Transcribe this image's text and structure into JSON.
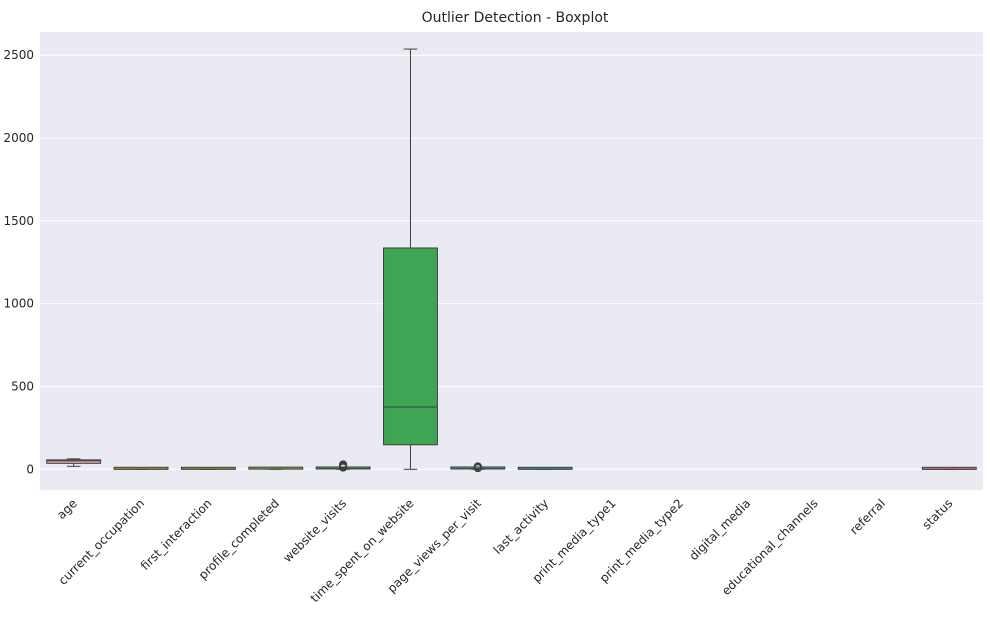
{
  "chart_data": {
    "type": "boxplot",
    "title": "Outlier Detection - Boxplot",
    "xlabel": "",
    "ylabel": "",
    "ylim": [
      -125,
      2640
    ],
    "yticks": [
      0,
      500,
      1000,
      1500,
      2000,
      2500
    ],
    "grid": true,
    "categories": [
      "age",
      "current_occupation",
      "first_interaction",
      "profile_completed",
      "website_visits",
      "time_spent_on_website",
      "page_views_per_visit",
      "last_activity",
      "print_media_type1",
      "print_media_type2",
      "digital_media",
      "educational_channels",
      "referral",
      "status"
    ],
    "boxes": [
      {
        "name": "age",
        "whisker_low": 18,
        "q1": 36,
        "median": 51,
        "q3": 57,
        "whisker_high": 63,
        "outliers": [],
        "color": "#e6a6a9"
      },
      {
        "name": "current_occupation",
        "whisker_low": 0,
        "q1": 0,
        "median": 1,
        "q3": 2,
        "whisker_high": 2,
        "outliers": [],
        "color": "#d9a03f"
      },
      {
        "name": "first_interaction",
        "whisker_low": 0,
        "q1": 0,
        "median": 1,
        "q3": 1,
        "whisker_high": 1,
        "outliers": [],
        "color": "#b5a33a"
      },
      {
        "name": "profile_completed",
        "whisker_low": 0,
        "q1": 1,
        "median": 2,
        "q3": 2,
        "whisker_high": 2,
        "outliers": [],
        "color": "#8fae3e"
      },
      {
        "name": "website_visits",
        "whisker_low": 0,
        "q1": 2,
        "median": 3,
        "q3": 5,
        "whisker_high": 9,
        "outliers": [
          10,
          12,
          14,
          16,
          18,
          20,
          22,
          24,
          26,
          28,
          30
        ],
        "color": "#3caa57"
      },
      {
        "name": "time_spent_on_website",
        "whisker_low": 0,
        "q1": 148,
        "median": 376,
        "q3": 1336,
        "whisker_high": 2537,
        "outliers": [],
        "color": "#3ea555"
      },
      {
        "name": "page_views_per_visit",
        "whisker_low": 0,
        "q1": 2,
        "median": 3,
        "q3": 4,
        "whisker_high": 6,
        "outliers": [
          7,
          8,
          9,
          10,
          11,
          12,
          13,
          15,
          17,
          18
        ],
        "color": "#3aa69a"
      },
      {
        "name": "last_activity",
        "whisker_low": 0,
        "q1": 0,
        "median": 1,
        "q3": 2,
        "whisker_high": 2,
        "outliers": [],
        "color": "#39a3b5"
      },
      {
        "name": "print_media_type1",
        "whisker_low": null,
        "q1": null,
        "median": null,
        "q3": null,
        "whisker_high": null,
        "outliers": [],
        "color": "#3b9dd1"
      },
      {
        "name": "print_media_type2",
        "whisker_low": null,
        "q1": null,
        "median": null,
        "q3": null,
        "whisker_high": null,
        "outliers": [],
        "color": "#6f8fe0"
      },
      {
        "name": "digital_media",
        "whisker_low": null,
        "q1": null,
        "median": null,
        "q3": null,
        "whisker_high": null,
        "outliers": [],
        "color": "#a481e6"
      },
      {
        "name": "educational_channels",
        "whisker_low": null,
        "q1": null,
        "median": null,
        "q3": null,
        "whisker_high": null,
        "outliers": [],
        "color": "#cf6fdc"
      },
      {
        "name": "referral",
        "whisker_low": null,
        "q1": null,
        "median": null,
        "q3": null,
        "whisker_high": null,
        "outliers": [],
        "color": "#e56eb7"
      },
      {
        "name": "status",
        "whisker_low": 0,
        "q1": 0,
        "median": 0,
        "q3": 1,
        "whisker_high": 1,
        "outliers": [],
        "color": "#e77a8f"
      }
    ],
    "colors": {
      "background": "#eaeaf2",
      "grid": "#ffffff",
      "box_edge": "#3f3f3f"
    }
  }
}
